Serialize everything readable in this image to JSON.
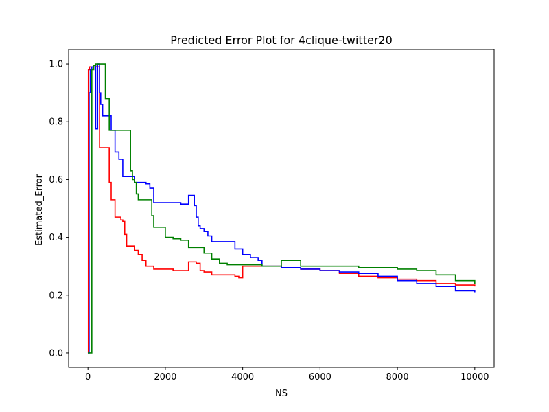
{
  "chart_data": {
    "type": "line",
    "title": "Predicted Error Plot for 4clique-twitter20",
    "xlabel": "NS",
    "ylabel": "Estimated_Error",
    "xlim": [
      -500,
      10500
    ],
    "ylim": [
      -0.05,
      1.05
    ],
    "xticks": [
      0,
      2000,
      4000,
      6000,
      8000,
      10000
    ],
    "xtick_labels": [
      "0",
      "2000",
      "4000",
      "6000",
      "8000",
      "10000"
    ],
    "yticks": [
      0.0,
      0.2,
      0.4,
      0.6,
      0.8,
      1.0
    ],
    "ytick_labels": [
      "0.0",
      "0.2",
      "0.4",
      "0.6",
      "0.8",
      "1.0"
    ],
    "grid": false,
    "legend": "none",
    "series": [
      {
        "color": "#ff0000",
        "x": [
          0,
          10,
          40,
          80,
          150,
          200,
          300,
          500,
          550,
          600,
          650,
          700,
          800,
          850,
          900,
          950,
          1000,
          1050,
          1100,
          1200,
          1300,
          1400,
          1500,
          1600,
          1700,
          1800,
          2000,
          2200,
          2500,
          2600,
          2700,
          2800,
          2900,
          3000,
          3200,
          3500,
          3800,
          3900,
          4000,
          4500,
          5000,
          5500,
          6000,
          6500,
          7000,
          7500,
          8000,
          8500,
          9000,
          9500,
          10000
        ],
        "y": [
          0.0,
          0.98,
          0.99,
          0.99,
          0.995,
          0.99,
          0.71,
          0.71,
          0.59,
          0.53,
          0.53,
          0.47,
          0.47,
          0.46,
          0.455,
          0.41,
          0.37,
          0.37,
          0.37,
          0.355,
          0.34,
          0.32,
          0.3,
          0.3,
          0.29,
          0.29,
          0.29,
          0.285,
          0.285,
          0.315,
          0.315,
          0.31,
          0.285,
          0.28,
          0.27,
          0.27,
          0.265,
          0.26,
          0.3,
          0.3,
          0.295,
          0.29,
          0.285,
          0.275,
          0.265,
          0.26,
          0.255,
          0.25,
          0.24,
          0.235,
          0.23
        ]
      },
      {
        "color": "#0000ff",
        "x": [
          0,
          30,
          60,
          100,
          150,
          200,
          250,
          300,
          330,
          380,
          450,
          500,
          600,
          700,
          800,
          900,
          1000,
          1100,
          1200,
          1300,
          1500,
          1600,
          1700,
          1800,
          2000,
          2200,
          2400,
          2500,
          2600,
          2650,
          2750,
          2800,
          2850,
          2900,
          3000,
          3100,
          3200,
          3400,
          3600,
          3800,
          4000,
          4200,
          4400,
          4500,
          4600,
          5000,
          5200,
          5500,
          6000,
          6500,
          7000,
          7500,
          8000,
          8500,
          9000,
          9500,
          10000
        ],
        "y": [
          0.0,
          0.9,
          0.98,
          0.99,
          0.995,
          0.775,
          1.0,
          0.9,
          0.86,
          0.82,
          0.82,
          0.82,
          0.77,
          0.695,
          0.67,
          0.61,
          0.61,
          0.61,
          0.59,
          0.59,
          0.585,
          0.57,
          0.52,
          0.52,
          0.52,
          0.52,
          0.515,
          0.515,
          0.545,
          0.545,
          0.51,
          0.47,
          0.44,
          0.43,
          0.42,
          0.405,
          0.385,
          0.385,
          0.385,
          0.36,
          0.34,
          0.33,
          0.32,
          0.3,
          0.3,
          0.295,
          0.295,
          0.29,
          0.285,
          0.28,
          0.275,
          0.265,
          0.25,
          0.24,
          0.23,
          0.215,
          0.21
        ]
      },
      {
        "color": "#008000",
        "x": [
          0,
          60,
          100,
          150,
          200,
          300,
          400,
          450,
          500,
          550,
          600,
          700,
          900,
          1000,
          1100,
          1150,
          1200,
          1250,
          1300,
          1500,
          1600,
          1650,
          1700,
          1800,
          2000,
          2200,
          2400,
          2600,
          2800,
          3000,
          3200,
          3400,
          3600,
          4000,
          4500,
          5000,
          5500,
          6000,
          6500,
          7000,
          7500,
          8000,
          8500,
          9000,
          9500,
          10000
        ],
        "y": [
          0.0,
          0.0,
          0.98,
          0.995,
          1.0,
          1.0,
          1.0,
          0.88,
          0.88,
          0.77,
          0.77,
          0.77,
          0.77,
          0.77,
          0.63,
          0.6,
          0.59,
          0.55,
          0.53,
          0.53,
          0.53,
          0.475,
          0.435,
          0.435,
          0.4,
          0.395,
          0.39,
          0.365,
          0.365,
          0.345,
          0.325,
          0.31,
          0.305,
          0.305,
          0.3,
          0.32,
          0.3,
          0.3,
          0.3,
          0.295,
          0.295,
          0.29,
          0.285,
          0.27,
          0.25,
          0.24
        ]
      }
    ]
  }
}
